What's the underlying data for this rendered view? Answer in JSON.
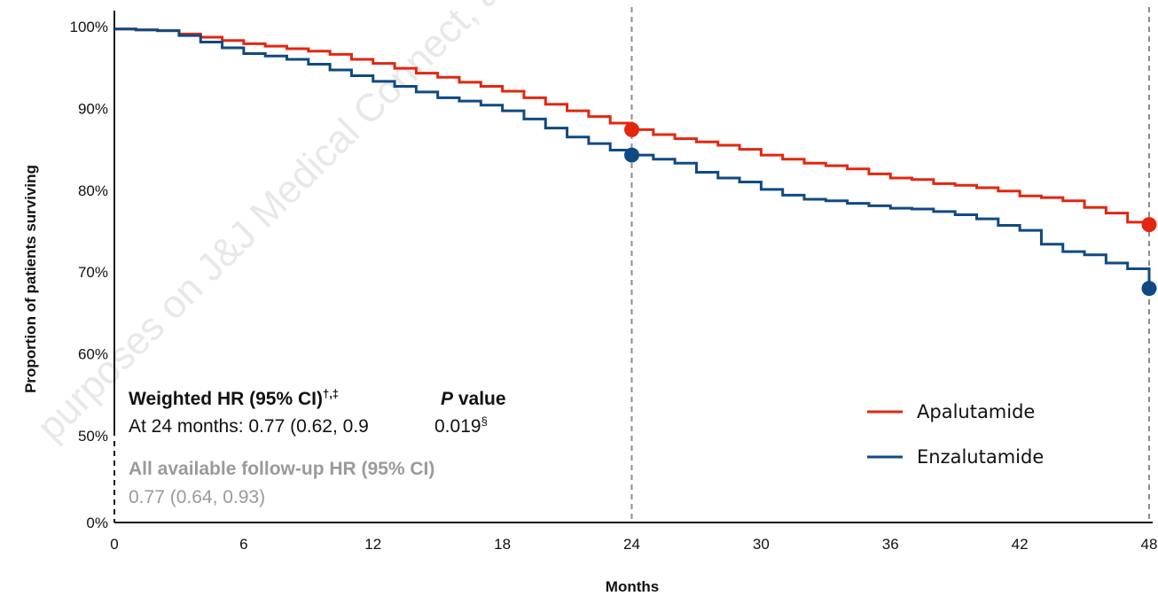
{
  "watermark": "purposes on J&J Medical Connect, and",
  "chart_data": {
    "type": "line",
    "title": "",
    "xlabel": "Months",
    "ylabel": "Proportion of patients surviving",
    "x_ticks": [
      0,
      6,
      12,
      18,
      24,
      30,
      36,
      42,
      48
    ],
    "y_ticks": [
      "0%",
      "50%",
      "60%",
      "70%",
      "80%",
      "90%",
      "100%"
    ],
    "y_break": "axis broken between 0% and 50%",
    "xlim": [
      0,
      48
    ],
    "ylim": [
      0.5,
      1.0
    ],
    "grid": false,
    "legend_position": "right-middle",
    "reference_lines": [
      24,
      48
    ],
    "series": [
      {
        "name": "Apalutamide",
        "color": "#e3260f",
        "x": [
          0,
          1,
          2,
          3,
          4,
          5,
          6,
          7,
          8,
          9,
          10,
          11,
          12,
          13,
          14,
          15,
          16,
          17,
          18,
          19,
          20,
          21,
          22,
          23,
          24,
          25,
          26,
          27,
          28,
          29,
          30,
          31,
          32,
          33,
          34,
          35,
          36,
          37,
          38,
          39,
          40,
          41,
          42,
          43,
          44,
          45,
          46,
          47,
          48
        ],
        "y": [
          0.997,
          0.996,
          0.995,
          0.991,
          0.987,
          0.983,
          0.979,
          0.976,
          0.973,
          0.97,
          0.966,
          0.96,
          0.955,
          0.949,
          0.943,
          0.938,
          0.932,
          0.927,
          0.921,
          0.913,
          0.905,
          0.897,
          0.89,
          0.882,
          0.874,
          0.868,
          0.863,
          0.859,
          0.855,
          0.85,
          0.843,
          0.838,
          0.833,
          0.83,
          0.826,
          0.82,
          0.815,
          0.813,
          0.808,
          0.806,
          0.803,
          0.799,
          0.793,
          0.791,
          0.787,
          0.779,
          0.772,
          0.761,
          0.758
        ],
        "markers": [
          {
            "x": 24,
            "y": 0.874
          },
          {
            "x": 48,
            "y": 0.758
          }
        ]
      },
      {
        "name": "Enzalutamide",
        "color": "#0f4a82",
        "x": [
          0,
          1,
          2,
          3,
          4,
          5,
          6,
          7,
          8,
          9,
          10,
          11,
          12,
          13,
          14,
          15,
          16,
          17,
          18,
          19,
          20,
          21,
          22,
          23,
          24,
          25,
          26,
          27,
          28,
          29,
          30,
          31,
          32,
          33,
          34,
          35,
          36,
          37,
          38,
          39,
          40,
          41,
          42,
          43,
          44,
          45,
          46,
          47,
          48
        ],
        "y": [
          0.997,
          0.996,
          0.995,
          0.989,
          0.981,
          0.974,
          0.967,
          0.964,
          0.96,
          0.954,
          0.947,
          0.94,
          0.933,
          0.927,
          0.92,
          0.913,
          0.909,
          0.904,
          0.897,
          0.887,
          0.876,
          0.865,
          0.857,
          0.849,
          0.843,
          0.838,
          0.833,
          0.822,
          0.815,
          0.81,
          0.801,
          0.794,
          0.789,
          0.787,
          0.784,
          0.781,
          0.778,
          0.777,
          0.774,
          0.77,
          0.765,
          0.757,
          0.751,
          0.734,
          0.725,
          0.721,
          0.711,
          0.704,
          0.68
        ],
        "markers": [
          {
            "x": 24,
            "y": 0.843
          },
          {
            "x": 48,
            "y": 0.68
          }
        ]
      }
    ]
  },
  "annotations": {
    "weighted_hr_header": "Weighted HR (95% CI)",
    "weighted_hr_sup": "†,‡",
    "p_value_italic": "P",
    "p_value_suffix": " value",
    "at24_label": "At 24 months: 0.77 (0.62, 0.9",
    "at24_p": "0.019",
    "at24_p_sup": "§",
    "all_fu_header": "All available follow-up HR (95% CI)",
    "all_fu_value": "0.77 (0.64, 0.93)"
  }
}
